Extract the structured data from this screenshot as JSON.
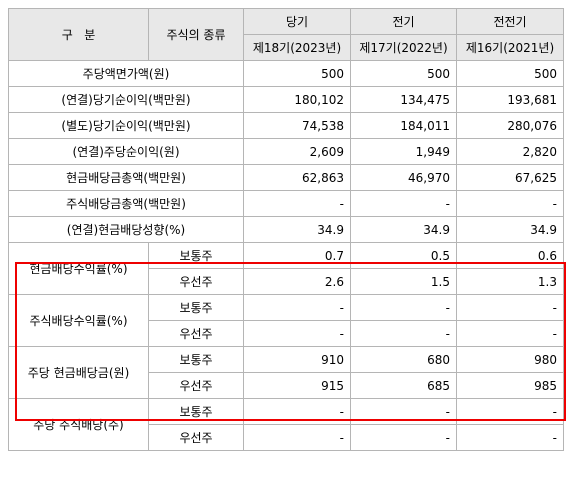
{
  "header": {
    "category": "구   분",
    "stock_type": "주식의 종류",
    "periods": [
      {
        "label": "당기",
        "sub": "제18기(2023년)"
      },
      {
        "label": "전기",
        "sub": "제17기(2022년)"
      },
      {
        "label": "전전기",
        "sub": "제16기(2021년)"
      }
    ]
  },
  "rows": [
    {
      "label": "주당액면가액(원)",
      "values": [
        "500",
        "500",
        "500"
      ]
    },
    {
      "label": "(연결)당기순이익(백만원)",
      "values": [
        "180,102",
        "134,475",
        "193,681"
      ]
    },
    {
      "label": "(별도)당기순이익(백만원)",
      "values": [
        "74,538",
        "184,011",
        "280,076"
      ]
    },
    {
      "label": "(연결)주당순이익(원)",
      "values": [
        "2,609",
        "1,949",
        "2,820"
      ]
    },
    {
      "label": "현금배당금총액(백만원)",
      "values": [
        "62,863",
        "46,970",
        "67,625"
      ]
    },
    {
      "label": "주식배당금총액(백만원)",
      "values": [
        "-",
        "-",
        "-"
      ]
    },
    {
      "label": "(연결)현금배당성향(%)",
      "values": [
        "34.9",
        "34.9",
        "34.9"
      ]
    }
  ],
  "split_rows": [
    {
      "label": "현금배당수익률(%)",
      "common": {
        "type": "보통주",
        "values": [
          "0.7",
          "0.5",
          "0.6"
        ]
      },
      "preferred": {
        "type": "우선주",
        "values": [
          "2.6",
          "1.5",
          "1.3"
        ]
      }
    },
    {
      "label": "주식배당수익률(%)",
      "common": {
        "type": "보통주",
        "values": [
          "-",
          "-",
          "-"
        ]
      },
      "preferred": {
        "type": "우선주",
        "values": [
          "-",
          "-",
          "-"
        ]
      }
    },
    {
      "label": "주당 현금배당금(원)",
      "common": {
        "type": "보통주",
        "values": [
          "910",
          "680",
          "980"
        ]
      },
      "preferred": {
        "type": "우선주",
        "values": [
          "915",
          "685",
          "985"
        ]
      }
    },
    {
      "label": "주당 주식배당(주)",
      "common": {
        "type": "보통주",
        "values": [
          "-",
          "-",
          "-"
        ]
      },
      "preferred": {
        "type": "우선주",
        "values": [
          "-",
          "-",
          "-"
        ]
      }
    }
  ],
  "highlight_color": "#ee0000"
}
